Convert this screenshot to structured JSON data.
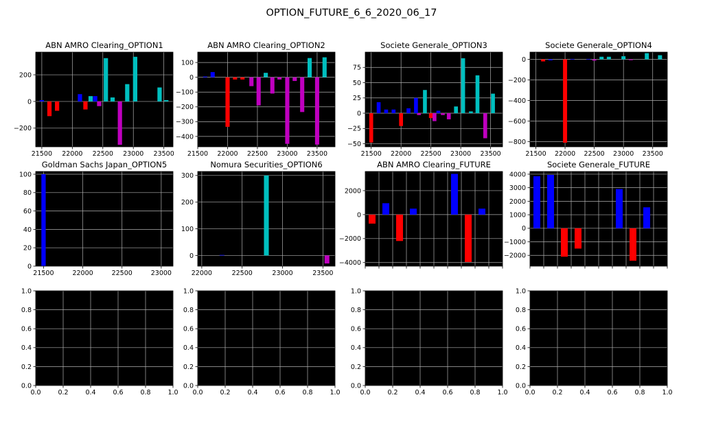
{
  "figure": {
    "title": "OPTION_FUTURE_6_6_2020_06_17"
  },
  "colors": {
    "blue": "#0000ff",
    "red": "#ff0000",
    "cyan": "#00bfbf",
    "magenta": "#bf00bf",
    "background": "#000000",
    "grid": "#b0b0b0"
  },
  "chart_data": [
    {
      "type": "bar",
      "title": "ABN AMRO Clearing_OPTION1",
      "xlim": [
        21400,
        23650
      ],
      "ylim": [
        -340,
        370
      ],
      "xticks": [
        21500,
        22000,
        22500,
        23000,
        23500
      ],
      "yticks": [
        -200,
        0,
        200
      ],
      "bar_width": 70,
      "bars": [
        {
          "x": 21500,
          "y": 10,
          "color": "blue"
        },
        {
          "x": 21625,
          "y": -110,
          "color": "red"
        },
        {
          "x": 21750,
          "y": -70,
          "color": "red"
        },
        {
          "x": 22125,
          "y": 55,
          "color": "blue"
        },
        {
          "x": 22215,
          "y": -60,
          "color": "red"
        },
        {
          "x": 22300,
          "y": 40,
          "color": "cyan"
        },
        {
          "x": 22375,
          "y": 40,
          "color": "blue"
        },
        {
          "x": 22440,
          "y": -35,
          "color": "magenta"
        },
        {
          "x": 22550,
          "y": 325,
          "color": "cyan"
        },
        {
          "x": 22660,
          "y": 30,
          "color": "cyan"
        },
        {
          "x": 22780,
          "y": -325,
          "color": "magenta"
        },
        {
          "x": 22900,
          "y": 130,
          "color": "cyan"
        },
        {
          "x": 23030,
          "y": 335,
          "color": "cyan"
        },
        {
          "x": 23430,
          "y": 105,
          "color": "cyan"
        },
        {
          "x": 23540,
          "y": 10,
          "color": "cyan"
        }
      ]
    },
    {
      "type": "bar",
      "title": "ABN AMRO Clearing_OPTION2",
      "xlim": [
        21500,
        23800
      ],
      "ylim": [
        -470,
        170
      ],
      "xticks": [
        21500,
        22000,
        22500,
        23000,
        23500
      ],
      "yticks": [
        -400,
        -300,
        -200,
        -100,
        0,
        100
      ],
      "bar_width": 70,
      "bars": [
        {
          "x": 21625,
          "y": 5,
          "color": "blue"
        },
        {
          "x": 21750,
          "y": 35,
          "color": "blue"
        },
        {
          "x": 22000,
          "y": -335,
          "color": "red"
        },
        {
          "x": 22125,
          "y": -15,
          "color": "red"
        },
        {
          "x": 22250,
          "y": -15,
          "color": "red"
        },
        {
          "x": 22400,
          "y": -60,
          "color": "magenta"
        },
        {
          "x": 22520,
          "y": -190,
          "color": "magenta"
        },
        {
          "x": 22640,
          "y": 30,
          "color": "cyan"
        },
        {
          "x": 22750,
          "y": -110,
          "color": "magenta"
        },
        {
          "x": 22870,
          "y": -15,
          "color": "magenta"
        },
        {
          "x": 23000,
          "y": -450,
          "color": "magenta"
        },
        {
          "x": 23125,
          "y": -25,
          "color": "magenta"
        },
        {
          "x": 23250,
          "y": -235,
          "color": "magenta"
        },
        {
          "x": 23375,
          "y": 130,
          "color": "cyan"
        },
        {
          "x": 23500,
          "y": -455,
          "color": "magenta"
        },
        {
          "x": 23625,
          "y": 135,
          "color": "cyan"
        }
      ]
    },
    {
      "type": "bar",
      "title": "Societe Generale_OPTION3",
      "xlim": [
        21400,
        23700
      ],
      "ylim": [
        -55,
        100
      ],
      "xticks": [
        21500,
        22000,
        22500,
        23000,
        23500
      ],
      "yticks": [
        -50,
        -25,
        0,
        25,
        50,
        75
      ],
      "bar_width": 65,
      "bars": [
        {
          "x": 21500,
          "y": -48,
          "color": "red"
        },
        {
          "x": 21625,
          "y": 18,
          "color": "blue"
        },
        {
          "x": 21750,
          "y": 6,
          "color": "blue"
        },
        {
          "x": 21875,
          "y": 6,
          "color": "blue"
        },
        {
          "x": 22000,
          "y": -21,
          "color": "red"
        },
        {
          "x": 22125,
          "y": 8,
          "color": "blue"
        },
        {
          "x": 22250,
          "y": 25,
          "color": "blue"
        },
        {
          "x": 22300,
          "y": -3,
          "color": "magenta"
        },
        {
          "x": 22400,
          "y": 38,
          "color": "cyan"
        },
        {
          "x": 22500,
          "y": -8,
          "color": "red"
        },
        {
          "x": 22560,
          "y": -13,
          "color": "magenta"
        },
        {
          "x": 22625,
          "y": 4,
          "color": "blue"
        },
        {
          "x": 22700,
          "y": -3,
          "color": "magenta"
        },
        {
          "x": 22800,
          "y": -10,
          "color": "magenta"
        },
        {
          "x": 22920,
          "y": 11,
          "color": "cyan"
        },
        {
          "x": 23040,
          "y": 90,
          "color": "cyan"
        },
        {
          "x": 23170,
          "y": 3,
          "color": "cyan"
        },
        {
          "x": 23280,
          "y": 62,
          "color": "cyan"
        },
        {
          "x": 23410,
          "y": -41,
          "color": "magenta"
        },
        {
          "x": 23540,
          "y": 32,
          "color": "cyan"
        }
      ]
    },
    {
      "type": "bar",
      "title": "Societe Generale_OPTION4",
      "xlim": [
        21400,
        23750
      ],
      "ylim": [
        -850,
        70
      ],
      "xticks": [
        21500,
        22000,
        22500,
        23000,
        23500
      ],
      "yticks": [
        -800,
        -600,
        -400,
        -200,
        0
      ],
      "bar_width": 70,
      "bars": [
        {
          "x": 21625,
          "y": -20,
          "color": "red"
        },
        {
          "x": 21750,
          "y": -10,
          "color": "blue"
        },
        {
          "x": 22000,
          "y": -810,
          "color": "red"
        },
        {
          "x": 22125,
          "y": 4,
          "color": "blue"
        },
        {
          "x": 22400,
          "y": 4,
          "color": "blue"
        },
        {
          "x": 22500,
          "y": -12,
          "color": "magenta"
        },
        {
          "x": 22625,
          "y": 25,
          "color": "cyan"
        },
        {
          "x": 22750,
          "y": 25,
          "color": "cyan"
        },
        {
          "x": 23000,
          "y": 30,
          "color": "cyan"
        },
        {
          "x": 23125,
          "y": -8,
          "color": "magenta"
        },
        {
          "x": 23400,
          "y": 60,
          "color": "cyan"
        },
        {
          "x": 23625,
          "y": 40,
          "color": "cyan"
        }
      ]
    },
    {
      "type": "bar",
      "title": "Goldman Sachs Japan_OPTION5",
      "xlim": [
        21400,
        23150
      ],
      "ylim": [
        0,
        103
      ],
      "xticks": [
        21500,
        22000,
        22500,
        23000
      ],
      "yticks": [
        0,
        20,
        40,
        60,
        80,
        100
      ],
      "bar_width": 55,
      "bars": [
        {
          "x": 21500,
          "y": 100,
          "color": "blue"
        }
      ]
    },
    {
      "type": "bar",
      "title": "Nomura Securities_OPTION6",
      "xlim": [
        21950,
        23650
      ],
      "ylim": [
        -40,
        315
      ],
      "xticks": [
        22000,
        22500,
        23000,
        23500
      ],
      "yticks": [
        0,
        100,
        200,
        300
      ],
      "bar_width": 60,
      "bars": [
        {
          "x": 22250,
          "y": 2,
          "color": "blue"
        },
        {
          "x": 22800,
          "y": 300,
          "color": "cyan"
        },
        {
          "x": 23550,
          "y": -30,
          "color": "magenta"
        }
      ]
    },
    {
      "type": "bar",
      "title": "ABN AMRO Clearing_FUTURE",
      "xlim": [
        0,
        10
      ],
      "ylim": [
        -4300,
        3600
      ],
      "xticks": [],
      "minor_ticks": 10,
      "yticks": [
        -4000,
        -2000,
        0,
        2000
      ],
      "bar_width": 0.5,
      "bars": [
        {
          "x": 0.5,
          "y": -750,
          "color": "red"
        },
        {
          "x": 1.5,
          "y": 950,
          "color": "blue"
        },
        {
          "x": 2.5,
          "y": -2200,
          "color": "red"
        },
        {
          "x": 3.5,
          "y": 500,
          "color": "blue"
        },
        {
          "x": 6.5,
          "y": 3400,
          "color": "blue"
        },
        {
          "x": 7.5,
          "y": -3950,
          "color": "red"
        },
        {
          "x": 8.5,
          "y": 500,
          "color": "blue"
        }
      ]
    },
    {
      "type": "bar",
      "title": "Societe Generale_FUTURE",
      "xlim": [
        0,
        10
      ],
      "ylim": [
        -2800,
        4200
      ],
      "xticks": [],
      "minor_ticks": 10,
      "yticks": [
        -2000,
        -1000,
        0,
        1000,
        2000,
        3000,
        4000
      ],
      "bar_width": 0.5,
      "bars": [
        {
          "x": 0.5,
          "y": 3850,
          "color": "blue"
        },
        {
          "x": 1.5,
          "y": 3950,
          "color": "blue"
        },
        {
          "x": 2.5,
          "y": -2100,
          "color": "red"
        },
        {
          "x": 3.5,
          "y": -1500,
          "color": "red"
        },
        {
          "x": 6.5,
          "y": 2900,
          "color": "blue"
        },
        {
          "x": 7.5,
          "y": -2400,
          "color": "red"
        },
        {
          "x": 8.5,
          "y": 1550,
          "color": "blue"
        }
      ]
    },
    {
      "type": "bar",
      "title": "",
      "xlim": [
        0,
        1
      ],
      "ylim": [
        0,
        1
      ],
      "xticks": [
        0.0,
        0.2,
        0.4,
        0.6,
        0.8,
        1.0
      ],
      "yticks": [
        0.0,
        0.2,
        0.4,
        0.6,
        0.8,
        1.0
      ],
      "tick_decimals": 1,
      "bars": []
    },
    {
      "type": "bar",
      "title": "",
      "xlim": [
        0,
        1
      ],
      "ylim": [
        0,
        1
      ],
      "xticks": [
        0.0,
        0.2,
        0.4,
        0.6,
        0.8,
        1.0
      ],
      "yticks": [
        0.0,
        0.2,
        0.4,
        0.6,
        0.8,
        1.0
      ],
      "tick_decimals": 1,
      "bars": []
    },
    {
      "type": "bar",
      "title": "",
      "xlim": [
        0,
        1
      ],
      "ylim": [
        0,
        1
      ],
      "xticks": [
        0.0,
        0.2,
        0.4,
        0.6,
        0.8,
        1.0
      ],
      "yticks": [
        0.0,
        0.2,
        0.4,
        0.6,
        0.8,
        1.0
      ],
      "tick_decimals": 1,
      "bars": []
    },
    {
      "type": "bar",
      "title": "",
      "xlim": [
        0,
        1
      ],
      "ylim": [
        0,
        1
      ],
      "xticks": [
        0.0,
        0.2,
        0.4,
        0.6,
        0.8,
        1.0
      ],
      "yticks": [
        0.0,
        0.2,
        0.4,
        0.6,
        0.8,
        1.0
      ],
      "tick_decimals": 1,
      "bars": []
    }
  ]
}
